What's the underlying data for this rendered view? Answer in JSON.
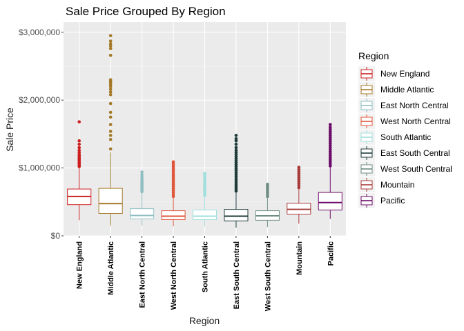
{
  "chart_data": {
    "type": "boxplot",
    "title": "Sale Price Grouped By Region",
    "xlabel": "Region",
    "ylabel": "Sale Price",
    "ylim": [
      0,
      3150000
    ],
    "y_ticks": [
      {
        "value": 0,
        "label": "$0"
      },
      {
        "value": 1000000,
        "label": "$1,000,000"
      },
      {
        "value": 2000000,
        "label": "$2,000,000"
      },
      {
        "value": 3000000,
        "label": "$3,000,000"
      }
    ],
    "grid": true,
    "legend_title": "Region",
    "legend_position": "right",
    "series": [
      {
        "name": "New England",
        "color": "#cc1f1f",
        "whisker_low": 230000,
        "q1": 460000,
        "median": 580000,
        "q3": 690000,
        "whisker_high": 1000000,
        "outliers": [
          1020000,
          1040000,
          1060000,
          1080000,
          1100000,
          1120000,
          1140000,
          1160000,
          1180000,
          1200000,
          1230000,
          1260000,
          1300000,
          1350000,
          1400000,
          1680000
        ]
      },
      {
        "name": "Middle Atlantic",
        "color": "#a47a2a",
        "whisker_low": 150000,
        "q1": 330000,
        "median": 475000,
        "q3": 700000,
        "whisker_high": 1230000,
        "outliers": [
          1280000,
          1420000,
          1480000,
          1540000,
          1640000,
          1750000,
          1820000,
          1950000,
          2080000,
          2120000,
          2160000,
          2200000,
          2230000,
          2260000,
          2280000,
          2300000,
          2660000,
          2760000,
          2800000,
          2830000,
          2870000,
          2950000
        ]
      },
      {
        "name": "East North Central",
        "color": "#8fbfc2",
        "whisker_low": 150000,
        "q1": 250000,
        "median": 300000,
        "q3": 400000,
        "whisker_high": 630000,
        "outliers": [
          650000,
          670000,
          690000,
          710000,
          730000,
          750000,
          770000,
          790000,
          810000,
          840000,
          870000,
          900000,
          940000
        ]
      },
      {
        "name": "West North Central",
        "color": "#e0553a",
        "whisker_low": 140000,
        "q1": 240000,
        "median": 290000,
        "q3": 370000,
        "whisker_high": 560000,
        "outliers": [
          580000,
          610000,
          640000,
          670000,
          700000,
          730000,
          760000,
          790000,
          820000,
          850000,
          880000,
          910000,
          940000,
          970000,
          1000000,
          1030000,
          1060000,
          1090000
        ]
      },
      {
        "name": "South Atlantic",
        "color": "#9fe0dc",
        "whisker_low": 140000,
        "q1": 240000,
        "median": 290000,
        "q3": 380000,
        "whisker_high": 580000,
        "outliers": [
          600000,
          630000,
          660000,
          690000,
          720000,
          750000,
          780000,
          810000,
          840000,
          870000,
          900000,
          920000
        ]
      },
      {
        "name": "East South Central",
        "color": "#1e3b3a",
        "whisker_low": 120000,
        "q1": 220000,
        "median": 290000,
        "q3": 390000,
        "whisker_high": 640000,
        "outliers": [
          660000,
          690000,
          720000,
          750000,
          780000,
          810000,
          840000,
          870000,
          900000,
          930000,
          960000,
          990000,
          1020000,
          1050000,
          1080000,
          1110000,
          1140000,
          1170000,
          1200000,
          1230000,
          1260000,
          1300000,
          1350000,
          1400000,
          1430000,
          1480000
        ]
      },
      {
        "name": "West South Central",
        "color": "#6e8c84",
        "whisker_low": 130000,
        "q1": 230000,
        "median": 295000,
        "q3": 370000,
        "whisker_high": 560000,
        "outliers": [
          580000,
          610000,
          640000,
          670000,
          700000,
          730000,
          760000
        ]
      },
      {
        "name": "Mountain",
        "color": "#a83a3a",
        "whisker_low": 180000,
        "q1": 320000,
        "median": 390000,
        "q3": 480000,
        "whisker_high": 690000,
        "outliers": [
          710000,
          740000,
          770000,
          800000,
          830000,
          860000,
          890000,
          920000,
          950000,
          980000,
          1010000
        ]
      },
      {
        "name": "Pacific",
        "color": "#6b0a68",
        "whisker_low": 250000,
        "q1": 380000,
        "median": 490000,
        "q3": 640000,
        "whisker_high": 1010000,
        "outliers": [
          1030000,
          1060000,
          1090000,
          1120000,
          1150000,
          1180000,
          1210000,
          1240000,
          1270000,
          1300000,
          1330000,
          1360000,
          1390000,
          1420000,
          1450000,
          1480000,
          1510000,
          1540000,
          1570000,
          1600000,
          1640000
        ]
      }
    ]
  }
}
